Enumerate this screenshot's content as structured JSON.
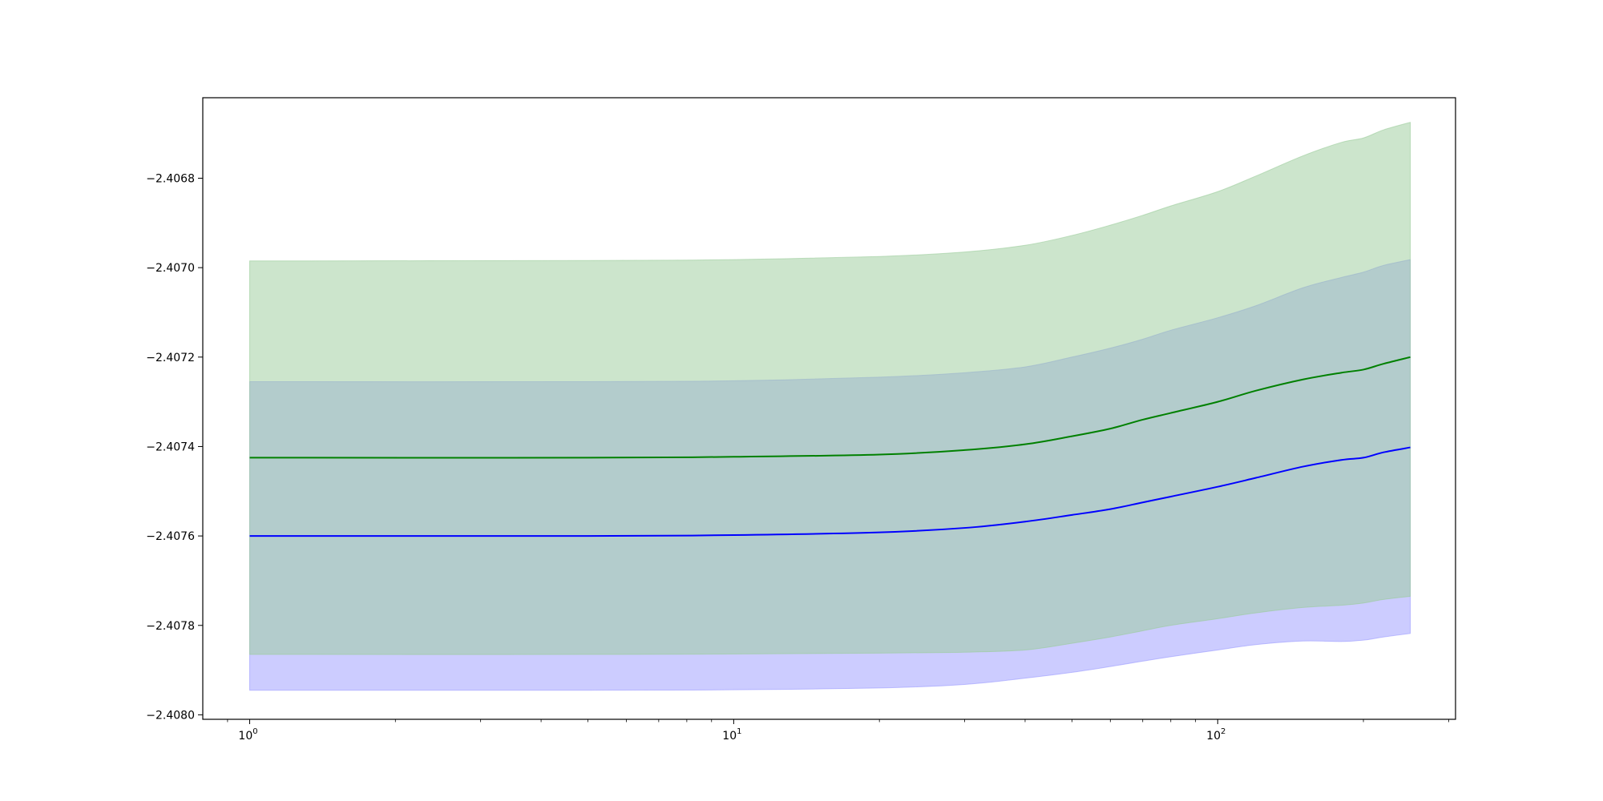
{
  "chart_data": {
    "type": "area",
    "title": "",
    "xlabel": "",
    "ylabel": "",
    "xscale": "log",
    "xlim": [
      0.8,
      310
    ],
    "ylim": [
      -2.40801,
      -2.40662
    ],
    "grid": false,
    "legend": "none",
    "x_ticks": [
      {
        "base": "10",
        "exp": "0",
        "value": 1
      },
      {
        "base": "10",
        "exp": "1",
        "value": 10
      },
      {
        "base": "10",
        "exp": "2",
        "value": 100
      }
    ],
    "y_ticks": [
      {
        "label": "−2.4068",
        "value": -2.4068
      },
      {
        "label": "−2.4070",
        "value": -2.407
      },
      {
        "label": "−2.4072",
        "value": -2.4072
      },
      {
        "label": "−2.4074",
        "value": -2.4074
      },
      {
        "label": "−2.4076",
        "value": -2.4076
      },
      {
        "label": "−2.4078",
        "value": -2.4078
      },
      {
        "label": "−2.4080",
        "value": -2.408
      }
    ],
    "x": [
      1,
      5,
      10,
      20,
      30,
      40,
      50,
      60,
      70,
      80,
      100,
      120,
      150,
      180,
      200,
      220,
      250
    ],
    "series": [
      {
        "color": "#0000ff",
        "band_color": "#9999ff",
        "mean": [
          -2.4076,
          -2.4076,
          -2.407598,
          -2.407592,
          -2.407582,
          -2.407568,
          -2.407553,
          -2.40754,
          -2.407525,
          -2.407512,
          -2.40749,
          -2.40747,
          -2.407445,
          -2.40743,
          -2.407425,
          -2.407413,
          -2.407402
        ],
        "upper": [
          -2.407255,
          -2.407255,
          -2.407253,
          -2.407245,
          -2.407235,
          -2.407222,
          -2.4072,
          -2.40718,
          -2.40716,
          -2.40714,
          -2.407112,
          -2.407085,
          -2.407045,
          -2.407022,
          -2.40701,
          -2.406995,
          -2.406982
        ],
        "lower": [
          -2.407945,
          -2.407945,
          -2.407944,
          -2.40794,
          -2.407932,
          -2.407918,
          -2.407905,
          -2.407892,
          -2.40788,
          -2.40787,
          -2.407855,
          -2.407843,
          -2.407835,
          -2.407836,
          -2.407833,
          -2.407826,
          -2.407818
        ]
      },
      {
        "color": "#008000",
        "band_color": "#99cc99",
        "mean": [
          -2.407425,
          -2.407425,
          -2.407423,
          -2.407418,
          -2.407408,
          -2.407395,
          -2.407377,
          -2.40736,
          -2.40734,
          -2.407325,
          -2.4073,
          -2.407275,
          -2.40725,
          -2.407235,
          -2.407228,
          -2.407215,
          -2.4072
        ],
        "upper": [
          -2.406985,
          -2.406984,
          -2.406982,
          -2.406975,
          -2.406965,
          -2.40695,
          -2.406928,
          -2.406905,
          -2.406883,
          -2.406862,
          -2.40683,
          -2.406795,
          -2.40675,
          -2.40672,
          -2.40671,
          -2.406692,
          -2.406675
        ],
        "lower": [
          -2.407865,
          -2.407865,
          -2.407864,
          -2.407862,
          -2.40786,
          -2.407855,
          -2.40784,
          -2.407826,
          -2.407812,
          -2.4078,
          -2.407785,
          -2.407772,
          -2.40776,
          -2.407755,
          -2.40775,
          -2.407742,
          -2.407735
        ]
      }
    ]
  }
}
